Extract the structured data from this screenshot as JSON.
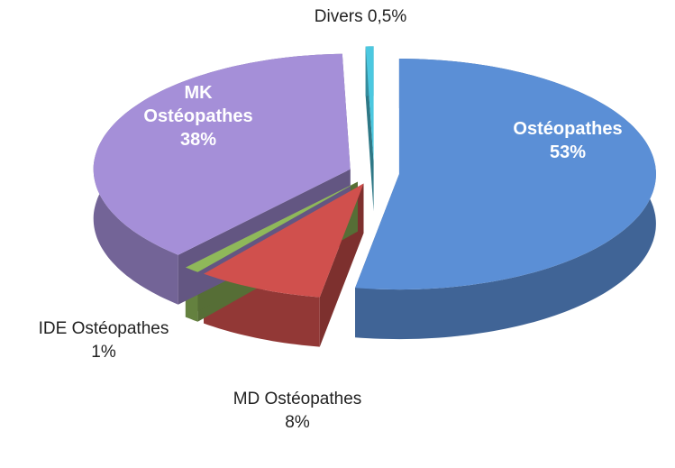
{
  "chart_data": {
    "type": "pie",
    "categories": [
      "Ostéopathes",
      "MD Ostéopathes",
      "IDE Ostéopathes",
      "MK Ostéopathes",
      "Divers"
    ],
    "values": [
      53,
      8,
      1,
      38,
      0.5
    ],
    "value_labels": [
      "53%",
      "8%",
      "1%",
      "38%",
      "0,5%"
    ],
    "colors": [
      "#5b8fd6",
      "#d0504d",
      "#8fb85a",
      "#a58fd8",
      "#4cc8e0"
    ]
  }
}
